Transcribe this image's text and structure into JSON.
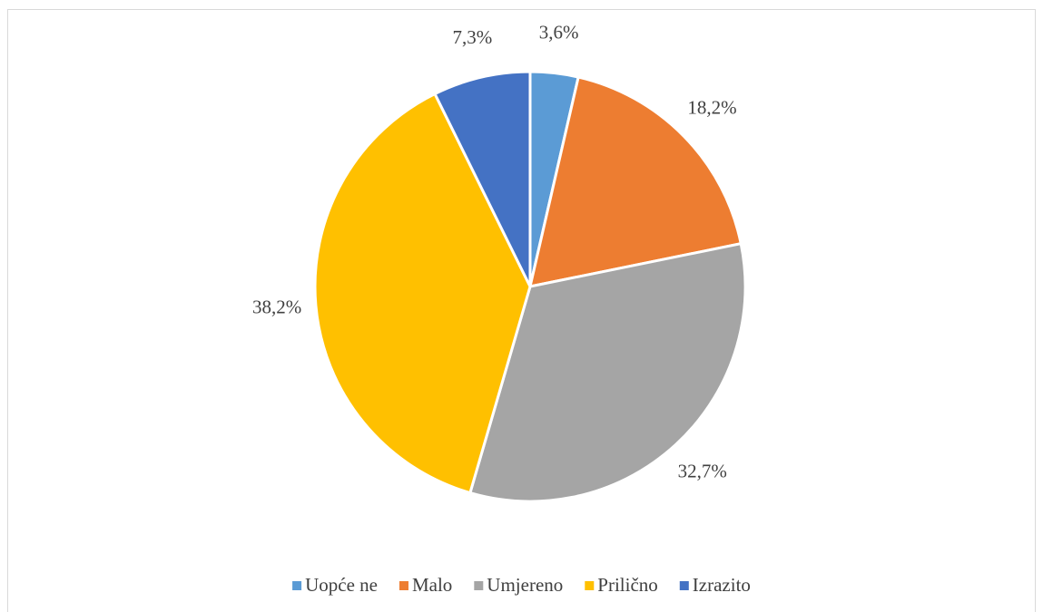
{
  "chart_data": {
    "type": "pie",
    "categories": [
      "Uopće ne",
      "Malo",
      "Umjereno",
      "Prilično",
      "Izrazito"
    ],
    "values": [
      3.6,
      18.2,
      32.7,
      38.2,
      7.3
    ],
    "value_labels": [
      "3,6%",
      "18,2%",
      "32,7%",
      "38,2%",
      "7,3%"
    ],
    "colors": [
      "#5b9bd5",
      "#ed7d31",
      "#a5a5a5",
      "#ffc000",
      "#4472c4"
    ],
    "legend": "bottom"
  }
}
